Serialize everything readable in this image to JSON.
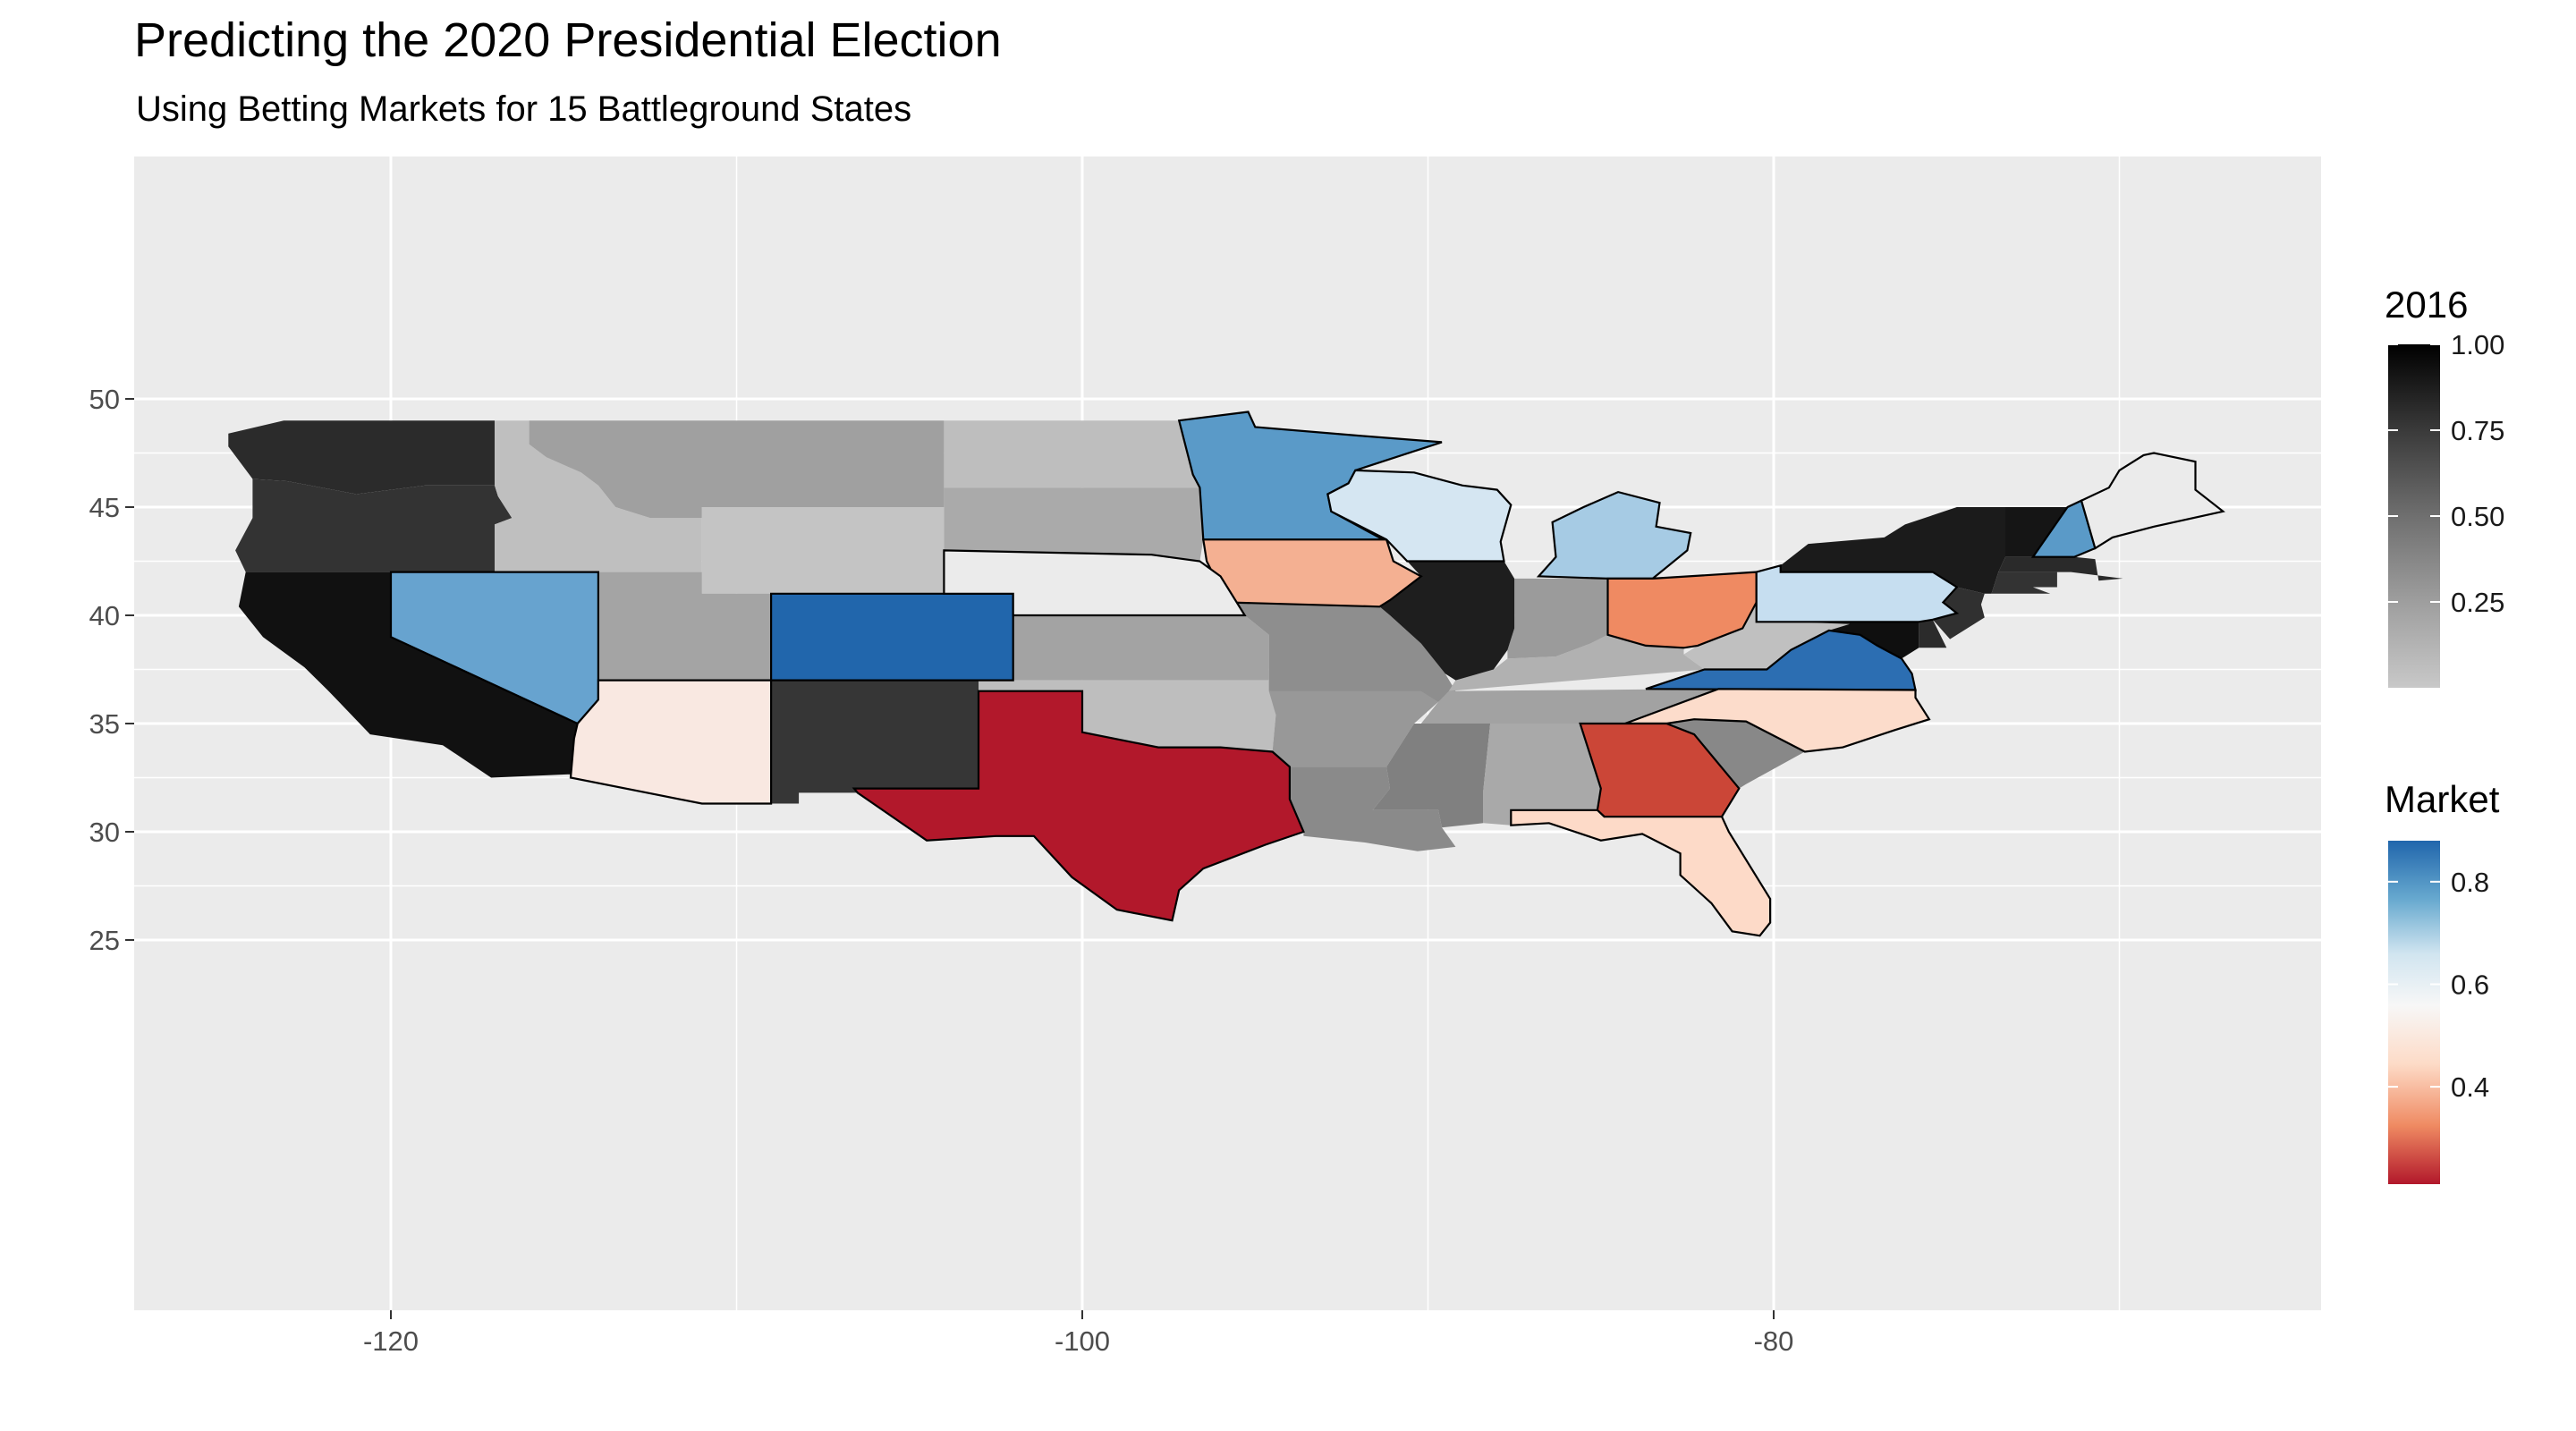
{
  "title": "Predicting the 2020 Presidential Election",
  "subtitle": "Using Betting Markets for 15 Battleground States",
  "chart_data": {
    "type": "map",
    "x_ticks": [
      -120,
      -100,
      -80
    ],
    "y_ticks": [
      25,
      30,
      35,
      40,
      45,
      50
    ],
    "xlim": [
      -127.5,
      -64
    ],
    "ylim": [
      24,
      50.5
    ],
    "grid": true,
    "legend_placement": "right",
    "colors": {
      "panel": "#ebebeb",
      "grid": "#ffffff",
      "missing_fill": "#ebebeb"
    },
    "legends": [
      {
        "title": "2016",
        "labels": [
          "1.00",
          "0.75",
          "0.50",
          "0.25"
        ],
        "values": [
          1.0,
          0.75,
          0.5,
          0.25
        ],
        "range": [
          0,
          1.0
        ],
        "colors": [
          "#c8c8c8",
          "#000000"
        ]
      },
      {
        "title": "Market",
        "labels": [
          "0.8",
          "0.6",
          "0.4"
        ],
        "values": [
          0.8,
          0.6,
          0.4
        ],
        "range": [
          0.21,
          0.88
        ],
        "colors": [
          "#b2182b",
          "#ef8a62",
          "#fddbc7",
          "#f7f7f7",
          "#d1e5f0",
          "#67a9cf",
          "#2166ac"
        ]
      }
    ],
    "states": [
      {
        "name": "Washington",
        "layer": "2016",
        "value": 0.88,
        "color": "#2b2b2b"
      },
      {
        "name": "Oregon",
        "layer": "2016",
        "value": 0.83,
        "color": "#333333"
      },
      {
        "name": "California",
        "layer": "2016",
        "value": 0.98,
        "color": "#111111"
      },
      {
        "name": "Idaho",
        "layer": "2016",
        "value": 0.05,
        "color": "#bfbfbf"
      },
      {
        "name": "Montana",
        "layer": "2016",
        "value": 0.2,
        "color": "#a0a0a0"
      },
      {
        "name": "Wyoming",
        "layer": "2016",
        "value": 0.02,
        "color": "#c4c4c4"
      },
      {
        "name": "Utah",
        "layer": "2016",
        "value": 0.2,
        "color": "#a4a4a4"
      },
      {
        "name": "North Dakota",
        "layer": "2016",
        "value": 0.05,
        "color": "#bebebe"
      },
      {
        "name": "South Dakota",
        "layer": "2016",
        "value": 0.15,
        "color": "#aaaaaa"
      },
      {
        "name": "Kansas",
        "layer": "2016",
        "value": 0.2,
        "color": "#a3a3a3"
      },
      {
        "name": "Oklahoma",
        "layer": "2016",
        "value": 0.05,
        "color": "#bebebe"
      },
      {
        "name": "New Mexico",
        "layer": "2016",
        "value": 0.83,
        "color": "#363636"
      },
      {
        "name": "Missouri",
        "layer": "2016",
        "value": 0.32,
        "color": "#8e8e8e"
      },
      {
        "name": "Arkansas",
        "layer": "2016",
        "value": 0.25,
        "color": "#989898"
      },
      {
        "name": "Louisiana",
        "layer": "2016",
        "value": 0.35,
        "color": "#8a8a8a"
      },
      {
        "name": "Mississippi",
        "layer": "2016",
        "value": 0.4,
        "color": "#808080"
      },
      {
        "name": "Alabama",
        "layer": "2016",
        "value": 0.15,
        "color": "#a9a9a9"
      },
      {
        "name": "Tennessee",
        "layer": "2016",
        "value": 0.2,
        "color": "#a2a2a2"
      },
      {
        "name": "Kentucky",
        "layer": "2016",
        "value": 0.1,
        "color": "#b1b1b1"
      },
      {
        "name": "West Virginia",
        "layer": "2016",
        "value": 0.05,
        "color": "#c0c0c0"
      },
      {
        "name": "Indiana",
        "layer": "2016",
        "value": 0.25,
        "color": "#9b9b9b"
      },
      {
        "name": "South Carolina",
        "layer": "2016",
        "value": 0.35,
        "color": "#888888"
      },
      {
        "name": "Illinois",
        "layer": "2016",
        "value": 0.92,
        "color": "#1e1e1e"
      },
      {
        "name": "New York",
        "layer": "2016",
        "value": 0.92,
        "color": "#1b1b1b"
      },
      {
        "name": "Vermont",
        "layer": "2016",
        "value": 0.95,
        "color": "#151515"
      },
      {
        "name": "Massachusetts",
        "layer": "2016",
        "value": 0.85,
        "color": "#2a2a2a"
      },
      {
        "name": "Connecticut",
        "layer": "2016",
        "value": 0.8,
        "color": "#333333"
      },
      {
        "name": "New Jersey",
        "layer": "2016",
        "value": 0.8,
        "color": "#303030"
      },
      {
        "name": "Delaware",
        "layer": "2016",
        "value": 0.85,
        "color": "#2b2b2b"
      },
      {
        "name": "Maryland",
        "layer": "2016",
        "value": 0.98,
        "color": "#0f0f0f"
      },
      {
        "name": "Nevada",
        "layer": "Market",
        "value": 0.77,
        "color": "#67a3cf"
      },
      {
        "name": "Arizona",
        "layer": "Market",
        "value": 0.54,
        "color": "#f9e8e1"
      },
      {
        "name": "Colorado",
        "layer": "Market",
        "value": 0.88,
        "color": "#2166ac"
      },
      {
        "name": "Texas",
        "layer": "Market",
        "value": 0.21,
        "color": "#b2182b"
      },
      {
        "name": "Minnesota",
        "layer": "Market",
        "value": 0.79,
        "color": "#5a9ac8"
      },
      {
        "name": "Iowa",
        "layer": "Market",
        "value": 0.42,
        "color": "#f4b092"
      },
      {
        "name": "Wisconsin",
        "layer": "Market",
        "value": 0.62,
        "color": "#d5e6f2"
      },
      {
        "name": "Michigan",
        "layer": "Market",
        "value": 0.69,
        "color": "#a6cbe4"
      },
      {
        "name": "Ohio",
        "layer": "Market",
        "value": 0.35,
        "color": "#ef8a62"
      },
      {
        "name": "Pennsylvania",
        "layer": "Market",
        "value": 0.64,
        "color": "#c6def0"
      },
      {
        "name": "New Hampshire",
        "layer": "Market",
        "value": 0.78,
        "color": "#5a9ac8"
      },
      {
        "name": "Virginia",
        "layer": "Market",
        "value": 0.86,
        "color": "#2c6eb2"
      },
      {
        "name": "North Carolina",
        "layer": "Market",
        "value": 0.47,
        "color": "#fcdccb"
      },
      {
        "name": "Georgia",
        "layer": "Market",
        "value": 0.26,
        "color": "#cb4637"
      },
      {
        "name": "Florida",
        "layer": "Market",
        "value": 0.45,
        "color": "#fddac8"
      },
      {
        "name": "Nebraska",
        "layer": "none",
        "value": null,
        "color": "#ebebeb"
      },
      {
        "name": "Maine",
        "layer": "none",
        "value": null,
        "color": "#ebebeb"
      }
    ]
  }
}
